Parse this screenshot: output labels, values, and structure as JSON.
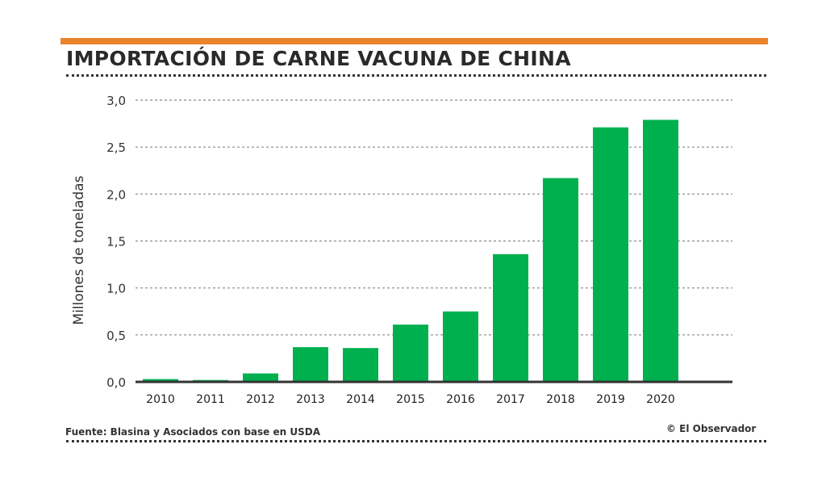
{
  "chart_data": {
    "type": "bar",
    "title": "IMPORTACIÓN DE CARNE VACUNA DE CHINA",
    "xlabel": "",
    "ylabel": "Millones de toneladas",
    "ylim": [
      0,
      3.0
    ],
    "yticks": [
      "0,0",
      "0,5",
      "1,0",
      "1,5",
      "2,0",
      "2,5",
      "3,0"
    ],
    "grid": true,
    "categories": [
      "2010",
      "2011",
      "2012",
      "2013",
      "2014",
      "2015",
      "2016",
      "2017",
      "2018",
      "2019",
      "2020"
    ],
    "values": [
      0.03,
      0.02,
      0.09,
      0.37,
      0.36,
      0.61,
      0.75,
      1.36,
      2.17,
      2.71,
      2.79
    ],
    "bar_color": "#00b04f"
  },
  "footer": {
    "source": "Fuente: Blasina y Asociados con base en USDA",
    "credit": "© El Observador"
  },
  "colors": {
    "accent": "#e8842b"
  }
}
